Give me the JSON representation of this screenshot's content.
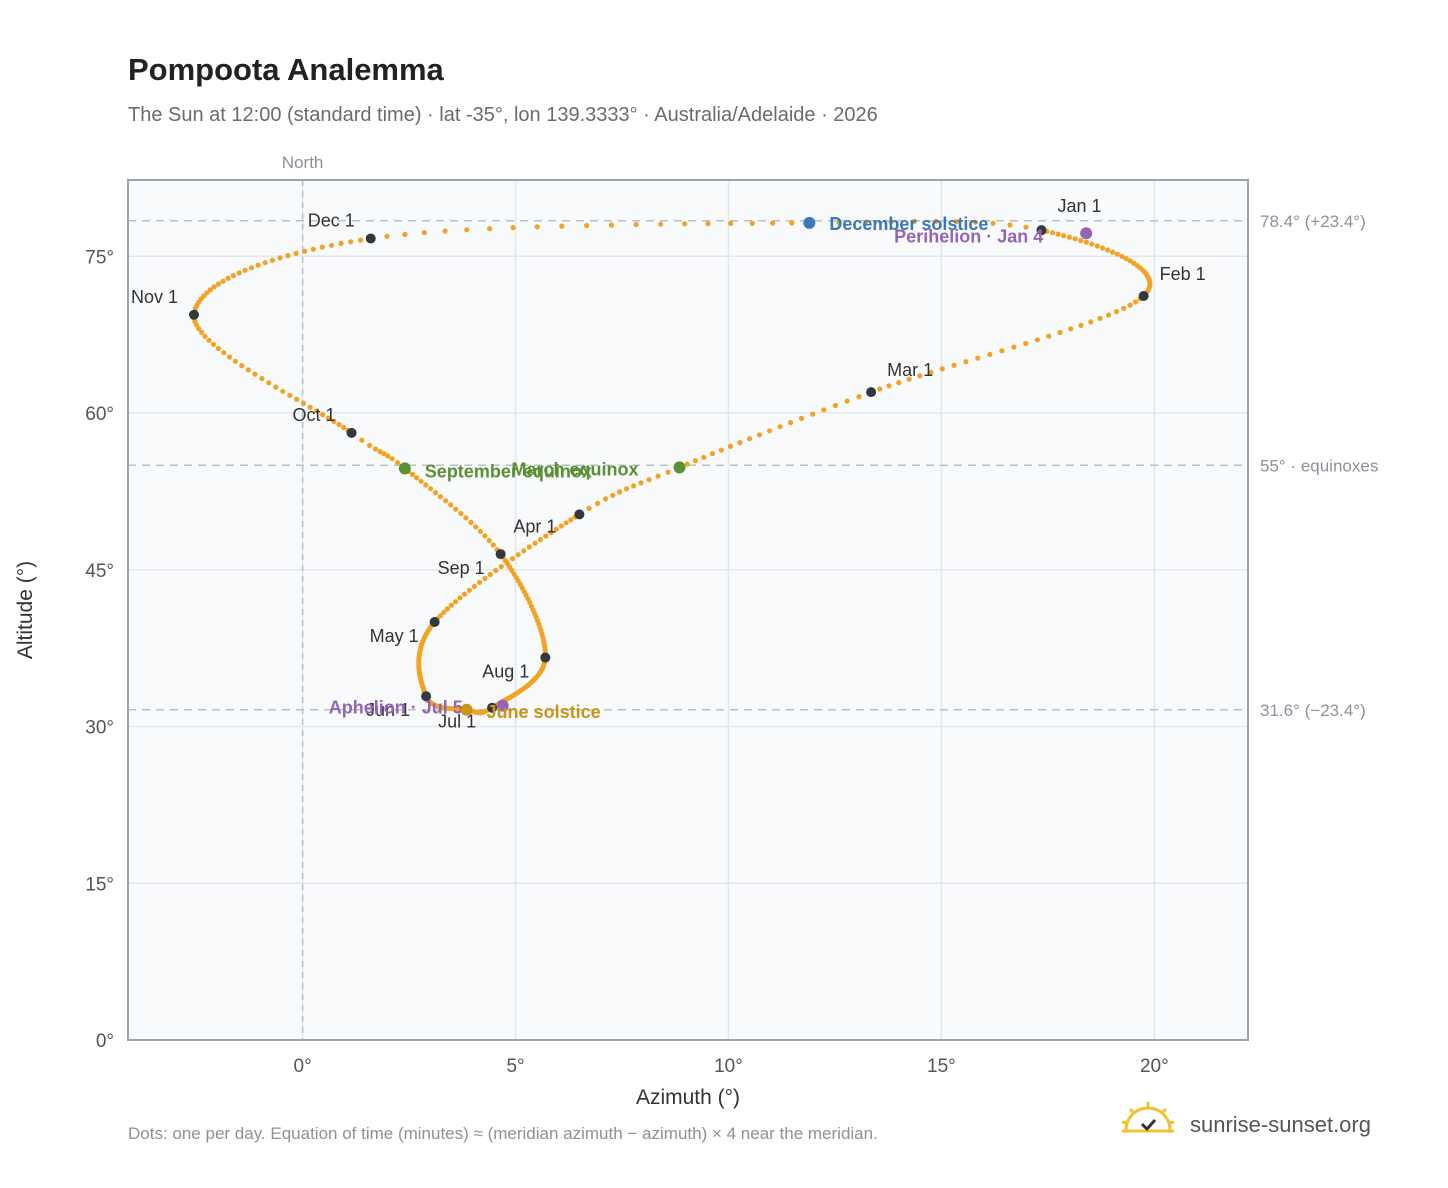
{
  "title": "Pompoota Analemma",
  "subtitle": "The Sun at 12:00 (standard time) · lat -35°, lon 139.3333° · Australia/Adelaide · 2026",
  "footnote": "Dots: one per day. Equation of time (minutes) ≈ (meridian azimuth − azimuth) × 4 near the meridian.",
  "brand": {
    "name": "sunrise-sunset.org",
    "icon": "sun-logo-icon"
  },
  "chart_data": {
    "type": "scatter",
    "xlabel": "Azimuth (°)",
    "ylabel": "Altitude (°)",
    "xlim": [
      -4.1,
      22.2
    ],
    "ylim": [
      0,
      82.3
    ],
    "x_ticks": [
      0,
      5,
      10,
      15,
      20
    ],
    "x_tick_labels": [
      "0°",
      "5°",
      "10°",
      "15°",
      "20°"
    ],
    "y_ticks": [
      0,
      15,
      30,
      45,
      60,
      75
    ],
    "y_tick_labels": [
      "0°",
      "15°",
      "30°",
      "45°",
      "60°",
      "75°"
    ],
    "grid": true,
    "north_label": "North",
    "north_azimuth": 0,
    "reference_lines": [
      {
        "altitude": 78.4,
        "label": "78.4° (+23.4°)"
      },
      {
        "altitude": 55,
        "label": "55° · equinoxes"
      },
      {
        "altitude": 31.6,
        "label": "31.6° (−23.4°)"
      }
    ],
    "curve_color": "#f2a324",
    "analemma_path": [
      {
        "day": 1,
        "az": 17.35,
        "alt": 77.5
      },
      {
        "day": 32,
        "az": 19.75,
        "alt": 71.2
      },
      {
        "day": 60,
        "az": 13.35,
        "alt": 62.0
      },
      {
        "day": 79,
        "az": 8.85,
        "alt": 54.8
      },
      {
        "day": 91,
        "az": 6.5,
        "alt": 50.3
      },
      {
        "day": 121,
        "az": 3.1,
        "alt": 40.0
      },
      {
        "day": 152,
        "az": 2.9,
        "alt": 32.9
      },
      {
        "day": 172,
        "az": 3.85,
        "alt": 31.6
      },
      {
        "day": 182,
        "az": 4.45,
        "alt": 31.8
      },
      {
        "day": 213,
        "az": 5.7,
        "alt": 36.6
      },
      {
        "day": 244,
        "az": 4.65,
        "alt": 46.5
      },
      {
        "day": 265,
        "az": 2.4,
        "alt": 54.7
      },
      {
        "day": 274,
        "az": 1.15,
        "alt": 58.1
      },
      {
        "day": 305,
        "az": -2.55,
        "alt": 69.4
      },
      {
        "day": 335,
        "az": 1.6,
        "alt": 76.7
      },
      {
        "day": 355,
        "az": 11.9,
        "alt": 78.2
      },
      {
        "day": 366,
        "az": 17.35,
        "alt": 77.5
      }
    ],
    "month_markers": [
      {
        "label": "Jan 1",
        "az": 17.35,
        "alt": 77.5,
        "anchor": "start",
        "dx": 16,
        "dy": -18
      },
      {
        "label": "Feb 1",
        "az": 19.75,
        "alt": 71.2,
        "anchor": "start",
        "dx": 16,
        "dy": -16
      },
      {
        "label": "Mar 1",
        "az": 13.35,
        "alt": 62.0,
        "anchor": "start",
        "dx": 16,
        "dy": -16
      },
      {
        "label": "Apr 1",
        "az": 6.5,
        "alt": 50.3,
        "anchor": "start",
        "dx": -66,
        "dy": 18
      },
      {
        "label": "May 1",
        "az": 3.1,
        "alt": 40.0,
        "anchor": "end",
        "dx": -16,
        "dy": 20
      },
      {
        "label": "Jun 1",
        "az": 2.9,
        "alt": 32.9,
        "anchor": "end",
        "dx": -16,
        "dy": 20
      },
      {
        "label": "Jul 1",
        "az": 4.45,
        "alt": 31.8,
        "anchor": "end",
        "dx": -16,
        "dy": 20
      },
      {
        "label": "Aug 1",
        "az": 5.7,
        "alt": 36.6,
        "anchor": "end",
        "dx": -16,
        "dy": 20
      },
      {
        "label": "Sep 1",
        "az": 4.65,
        "alt": 46.5,
        "anchor": "end",
        "dx": -16,
        "dy": 20
      },
      {
        "label": "Oct 1",
        "az": 1.15,
        "alt": 58.1,
        "anchor": "end",
        "dx": -16,
        "dy": -12
      },
      {
        "label": "Nov 1",
        "az": -2.55,
        "alt": 69.4,
        "anchor": "end",
        "dx": -16,
        "dy": -12
      },
      {
        "label": "Dec 1",
        "az": 1.6,
        "alt": 76.7,
        "anchor": "end",
        "dx": -16,
        "dy": -12
      }
    ],
    "events": [
      {
        "label": "December solstice",
        "az": 11.9,
        "alt": 78.2,
        "color": "#3a78b8",
        "dx": 20,
        "dy": 7
      },
      {
        "label": "Perihelion · Jan 4",
        "az": 18.4,
        "alt": 77.2,
        "color": "#9464b6",
        "dx": -192,
        "dy": 9
      },
      {
        "label": "March equinox",
        "az": 8.85,
        "alt": 54.8,
        "color": "#5a8f32",
        "dx": -168,
        "dy": 8
      },
      {
        "label": "September equinox",
        "az": 2.4,
        "alt": 54.7,
        "color": "#5a8f32",
        "dx": 20,
        "dy": 9
      },
      {
        "label": "Aphelion · Jul 5",
        "az": 4.7,
        "alt": 32.0,
        "color": "#9464b6",
        "dx": -174,
        "dy": 8
      },
      {
        "label": "June solstice",
        "az": 3.85,
        "alt": 31.6,
        "color": "#c99418",
        "dx": 20,
        "dy": 8
      }
    ]
  }
}
